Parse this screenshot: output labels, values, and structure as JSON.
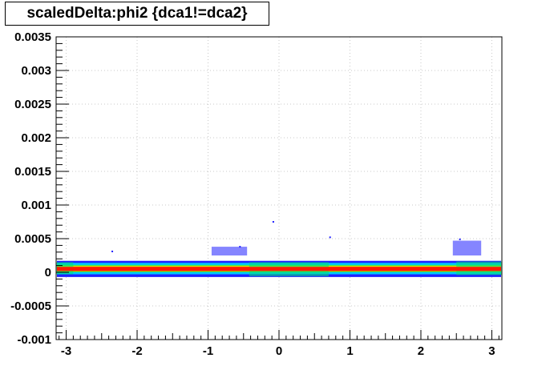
{
  "chart_data": {
    "type": "heatmap",
    "title": "scaledDelta:phi2 {dca1!=dca2}",
    "xlabel": "",
    "ylabel": "",
    "xlim": [
      -3.1416,
      3.1416
    ],
    "ylim": [
      -0.001,
      0.0035
    ],
    "grid": true,
    "x_ticks": [
      -3,
      -2,
      -1,
      0,
      1,
      2,
      3
    ],
    "x_tick_labels": [
      "-3",
      "-2",
      "-1",
      "0",
      "1",
      "2",
      "3"
    ],
    "y_ticks": [
      -0.001,
      -0.0005,
      0,
      0.0005,
      0.001,
      0.0015,
      0.002,
      0.0025,
      0.003,
      0.0035
    ],
    "y_tick_labels": [
      "-0.001",
      "-0.0005",
      "0",
      "0.0005",
      "0.001",
      "0.0015",
      "0.002",
      "0.0025",
      "0.003",
      "0.0035"
    ],
    "colors": {
      "low": "#2020ff",
      "low_mid": "#00c8ff",
      "mid": "#00e070",
      "mid_high": "#d8e000",
      "high": "#ff1a00"
    },
    "bands": [
      {
        "level": "low",
        "y_range": [
          -7e-05,
          0.00017
        ]
      },
      {
        "level": "low_mid",
        "y_range": [
          -3e-05,
          0.00014
        ]
      },
      {
        "level": "mid",
        "y_range": [
          0.0,
          0.00011
        ]
      },
      {
        "level": "mid_high",
        "y_range": [
          1e-05,
          0.0001
        ]
      },
      {
        "level": "high",
        "y_range": [
          2e-05,
          8e-05
        ]
      }
    ],
    "bumps": [
      {
        "x_range": [
          -3.14,
          -2.9
        ],
        "level": "mid",
        "y_range": [
          -3e-05,
          0.00015
        ]
      },
      {
        "x_range": [
          -0.42,
          0.7
        ],
        "level": "mid",
        "y_range": [
          -6e-05,
          0.00015
        ]
      },
      {
        "x_range": [
          2.5,
          3.14
        ],
        "level": "mid",
        "y_range": [
          -4e-05,
          0.00016
        ]
      },
      {
        "x_range": [
          -0.95,
          -0.45
        ],
        "level": "low",
        "y_range": [
          0.00025,
          0.00038
        ]
      },
      {
        "x_range": [
          2.45,
          2.85
        ],
        "level": "low",
        "y_range": [
          0.00025,
          0.00047
        ]
      }
    ],
    "outliers": [
      {
        "x": -0.08,
        "y": 0.00075
      },
      {
        "x": 0.72,
        "y": 0.00052
      },
      {
        "x": -2.35,
        "y": 0.00031
      },
      {
        "x": -0.55,
        "y": 0.00038
      },
      {
        "x": 2.55,
        "y": 0.00049
      }
    ]
  }
}
